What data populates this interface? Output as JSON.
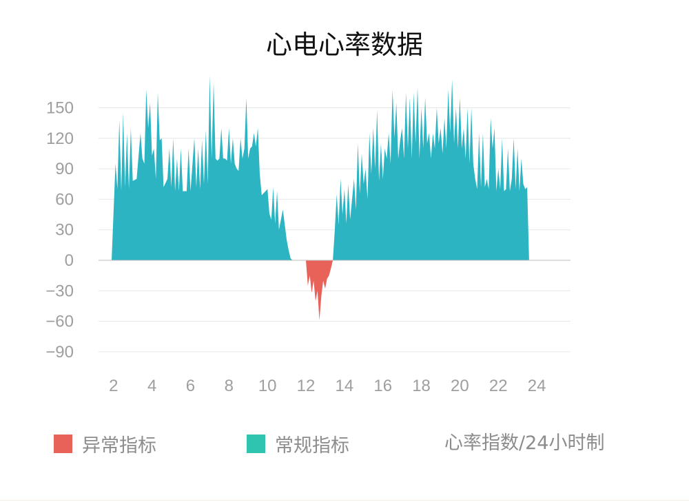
{
  "title": "心电心率数据",
  "legend": {
    "abnormal_label": "异常指标",
    "normal_label": "常规指标",
    "note": "心率指数/24小时制"
  },
  "colors": {
    "normal": "#2cb4c3",
    "abnormal": "#e8625a",
    "legend_normal": "#2ec4b0",
    "legend_abnormal": "#e8625a",
    "grid": "#e6e6e6",
    "axis": "#bdbdbd",
    "tick_text": "#9e9e9e"
  },
  "chart_data": {
    "type": "area",
    "title": "心电心率数据",
    "xlabel": "",
    "ylabel": "",
    "xlim": [
      1.6,
      25.9
    ],
    "ylim": [
      -100,
      190
    ],
    "y_ticks": [
      "150",
      "120",
      "90",
      "60",
      "30",
      "0",
      "−30",
      "−60",
      "−90"
    ],
    "y_tick_values": [
      150,
      120,
      90,
      60,
      30,
      0,
      -30,
      -60,
      -90
    ],
    "x_ticks": [
      "2",
      "4",
      "6",
      "8",
      "10",
      "12",
      "14",
      "16",
      "18",
      "20",
      "22",
      "24"
    ],
    "x_tick_values": [
      2,
      4,
      6,
      8,
      10,
      12,
      14,
      16,
      18,
      20,
      22,
      24
    ],
    "grid": true,
    "series": [
      {
        "name": "常规指标",
        "x": [
          1.9,
          2.1,
          2.2,
          2.3,
          2.4,
          2.5,
          2.6,
          2.7,
          2.8,
          2.9,
          3.0,
          3.2,
          3.4,
          3.5,
          3.6,
          3.7,
          3.8,
          3.9,
          4.0,
          4.1,
          4.2,
          4.3,
          4.4,
          4.5,
          4.6,
          4.8,
          4.9,
          5.0,
          5.1,
          5.2,
          5.3,
          5.4,
          5.5,
          5.6,
          5.7,
          5.8,
          5.9,
          6.0,
          6.2,
          6.3,
          6.4,
          6.5,
          6.6,
          6.7,
          6.8,
          6.9,
          7.0,
          7.1,
          7.2,
          7.3,
          7.4,
          7.5,
          7.6,
          7.7,
          7.8,
          7.9,
          8.0,
          8.1,
          8.2,
          8.3,
          8.4,
          8.5,
          8.6,
          8.7,
          8.8,
          8.9,
          9.0,
          9.1,
          9.2,
          9.3,
          9.4,
          9.5,
          9.6,
          9.7,
          9.8,
          9.9,
          10.0,
          10.1,
          10.2,
          10.3,
          10.4,
          10.5,
          10.6,
          10.8,
          11.0,
          11.1,
          11.2,
          11.3,
          11.4,
          11.5,
          11.6,
          11.7,
          11.8,
          11.9,
          12.0
        ],
        "values": [
          0,
          95,
          70,
          138,
          68,
          145,
          72,
          125,
          70,
          130,
          78,
          80,
          125,
          100,
          95,
          168,
          130,
          155,
          103,
          110,
          80,
          165,
          118,
          120,
          72,
          80,
          110,
          72,
          120,
          68,
          100,
          68,
          110,
          68,
          68,
          68,
          110,
          68,
          120,
          72,
          110,
          70,
          118,
          75,
          128,
          75,
          182,
          100,
          175,
          100,
          98,
          100,
          130,
          100,
          100,
          98,
          130,
          95,
          120,
          95,
          90,
          88,
          120,
          100,
          110,
          160,
          100,
          110,
          112,
          125,
          112,
          130,
          85,
          64,
          66,
          68,
          70,
          46,
          40,
          72,
          36,
          68,
          30,
          50,
          20,
          10,
          2,
          0,
          0,
          0,
          0,
          0,
          0,
          0,
          0
        ]
      },
      {
        "name": "常规指标",
        "x": [
          13.4,
          13.5,
          13.6,
          13.7,
          13.8,
          13.9,
          14.0,
          14.1,
          14.2,
          14.3,
          14.4,
          14.5,
          14.6,
          14.7,
          14.8,
          14.9,
          15.0,
          15.1,
          15.2,
          15.3,
          15.4,
          15.5,
          15.6,
          15.7,
          15.8,
          15.9,
          16.0,
          16.1,
          16.2,
          16.3,
          16.4,
          16.5,
          16.6,
          16.7,
          16.8,
          16.9,
          17.0,
          17.1,
          17.2,
          17.3,
          17.4,
          17.5,
          17.6,
          17.7,
          17.8,
          17.9,
          18.0,
          18.1,
          18.2,
          18.3,
          18.4,
          18.5,
          18.6,
          18.7,
          18.8,
          18.9,
          19.0,
          19.1,
          19.2,
          19.3,
          19.4,
          19.5,
          19.6,
          19.7,
          19.8,
          19.9,
          20.0,
          20.1,
          20.2,
          20.3,
          20.4,
          20.5,
          20.6,
          20.7,
          20.8,
          20.9,
          21.0,
          21.1,
          21.2,
          21.3,
          21.4,
          21.5,
          21.6,
          21.7,
          21.8,
          21.9,
          22.0,
          22.1,
          22.2,
          22.3,
          22.4,
          22.5,
          22.6,
          22.7,
          22.8,
          22.9,
          23.0,
          23.1,
          23.2,
          23.3,
          23.4,
          23.5,
          23.6,
          23.7,
          23.8,
          23.9,
          24.0,
          24.1,
          24.2,
          24.3,
          24.4,
          24.5,
          24.6,
          24.7,
          24.8,
          25.0
        ],
        "values": [
          0,
          30,
          65,
          35,
          80,
          45,
          70,
          36,
          75,
          40,
          60,
          80,
          50,
          115,
          65,
          105,
          75,
          90,
          60,
          125,
          85,
          130,
          90,
          148,
          78,
          115,
          80,
          110,
          100,
          125,
          95,
          168,
          120,
          155,
          100,
          118,
          130,
          100,
          165,
          110,
          160,
          100,
          165,
          115,
          170,
          100,
          150,
          110,
          160,
          115,
          125,
          100,
          125,
          110,
          150,
          115,
          130,
          105,
          140,
          110,
          168,
          125,
          178,
          115,
          150,
          110,
          160,
          110,
          130,
          100,
          150,
          95,
          150,
          95,
          80,
          70,
          125,
          72,
          125,
          72,
          80,
          70,
          140,
          110,
          130,
          68,
          90,
          70,
          120,
          68,
          70,
          110,
          68,
          80,
          120,
          70,
          110,
          68,
          100,
          75,
          70,
          72,
          0,
          0,
          0,
          0,
          0,
          0,
          0,
          0,
          0,
          0,
          0,
          0,
          0,
          0
        ],
        "comment_note": ""
      },
      {
        "name": "异常指标",
        "x": [
          12.0,
          12.1,
          12.2,
          12.3,
          12.4,
          12.5,
          12.6,
          12.7,
          12.8,
          12.9,
          13.0,
          13.1,
          13.2,
          13.3,
          13.4
        ],
        "values": [
          0,
          -25,
          -15,
          -32,
          -20,
          -40,
          -30,
          -59,
          -35,
          -20,
          -28,
          -18,
          -15,
          -8,
          0
        ]
      }
    ]
  }
}
